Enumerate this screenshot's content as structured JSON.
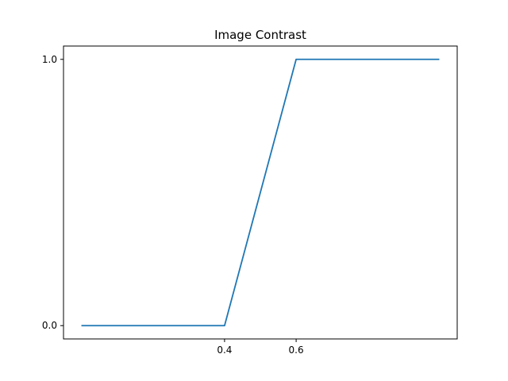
{
  "chart_data": {
    "type": "line",
    "title": "Image Contrast",
    "xlabel": "",
    "ylabel": "",
    "xlim": [
      -0.05,
      1.05
    ],
    "ylim": [
      -0.05,
      1.05
    ],
    "grid": false,
    "x_ticks": [
      {
        "value": 0.4,
        "label": "0.4"
      },
      {
        "value": 0.6,
        "label": "0.6"
      }
    ],
    "y_ticks": [
      {
        "value": 0.0,
        "label": "0.0"
      },
      {
        "value": 1.0,
        "label": "1.0"
      }
    ],
    "series": [
      {
        "color": "#1f77b4",
        "x": [
          0.0,
          0.4,
          0.6,
          1.0
        ],
        "y": [
          0.0,
          0.0,
          1.0,
          1.0
        ]
      }
    ]
  }
}
